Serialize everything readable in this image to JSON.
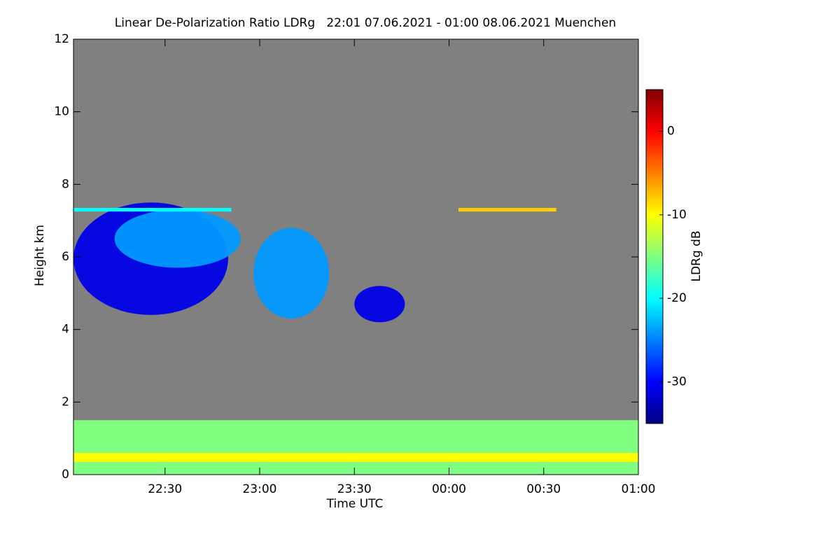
{
  "chart_data": {
    "type": "heatmap",
    "title": "Linear De-Polarization Ratio LDRg   22:01 07.06.2021 - 01:00 08.06.2021 Muenchen",
    "x_label": "Time UTC",
    "y_label": "Height km",
    "colorbar_label": "LDRg dB",
    "background": "#808080",
    "xlim": [
      1,
      180
    ],
    "xticks": [
      {
        "value": 30,
        "label": "22:30"
      },
      {
        "value": 60,
        "label": "23:00"
      },
      {
        "value": 90,
        "label": "23:30"
      },
      {
        "value": 120,
        "label": "00:00"
      },
      {
        "value": 150,
        "label": "00:30"
      },
      {
        "value": 180,
        "label": "01:00"
      }
    ],
    "ylim": [
      0,
      12
    ],
    "yticks": [
      0,
      2,
      4,
      6,
      8,
      10,
      12
    ],
    "clim": [
      -35,
      5
    ],
    "cticks": [
      -30,
      -20,
      -10,
      0
    ],
    "regions": [
      {
        "t": [
          1,
          50
        ],
        "h": [
          4.4,
          7.5
        ],
        "ldr": -31
      },
      {
        "t": [
          14,
          54
        ],
        "h": [
          5.7,
          7.3
        ],
        "ldr": -24
      },
      {
        "t": [
          58,
          82
        ],
        "h": [
          4.3,
          6.8
        ],
        "ldr": -24
      },
      {
        "t": [
          90,
          106
        ],
        "h": [
          4.2,
          5.2
        ],
        "ldr": -31
      },
      {
        "t": [
          1,
          180
        ],
        "h": [
          0,
          1.5
        ],
        "ldr": -15
      },
      {
        "t": [
          1,
          180
        ],
        "h": [
          0.35,
          0.6
        ],
        "ldr": -10
      },
      {
        "t": [
          1,
          51
        ],
        "h": [
          7.25,
          7.35
        ],
        "ldr": -20
      },
      {
        "t": [
          123,
          154
        ],
        "h": [
          7.25,
          7.35
        ],
        "ldr": -8
      }
    ]
  }
}
